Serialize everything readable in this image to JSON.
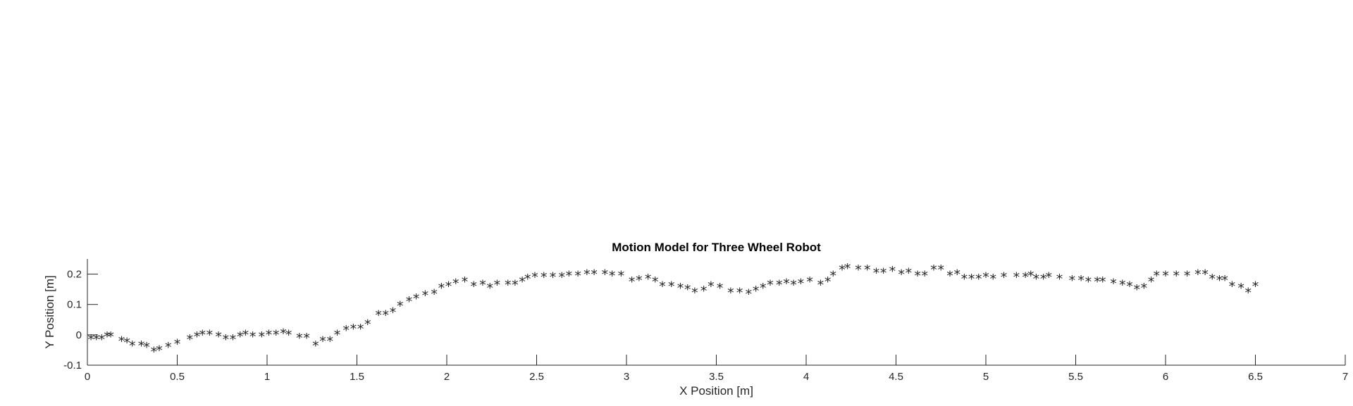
{
  "chart_data": {
    "type": "scatter",
    "title": "Motion Model for Three Wheel Robot",
    "xlabel": "X Position [m]",
    "ylabel": "Y Position [m]",
    "xlim": [
      0,
      7
    ],
    "ylim": [
      -0.1,
      0.25
    ],
    "xticks": [
      0,
      0.5,
      1,
      1.5,
      2,
      2.5,
      3,
      3.5,
      4,
      4.5,
      5,
      5.5,
      6,
      6.5,
      7
    ],
    "xtick_labels": [
      "0",
      "0.5",
      "1",
      "1.5",
      "2",
      "2.5",
      "3",
      "3.5",
      "4",
      "4.5",
      "5",
      "5.5",
      "6",
      "6.5",
      "7"
    ],
    "yticks": [
      -0.1,
      0,
      0.1,
      0.2
    ],
    "ytick_labels": [
      "-0.1",
      "0",
      "0.1",
      "0.2"
    ],
    "grid": false,
    "marker": "*",
    "marker_color": "#0000ff",
    "axis_color": "#262626",
    "series": [
      {
        "points": [
          [
            0.02,
            -0.01
          ],
          [
            0.05,
            -0.01
          ],
          [
            0.08,
            -0.01
          ],
          [
            0.11,
            0.0
          ],
          [
            0.13,
            0.0
          ],
          [
            0.19,
            -0.015
          ],
          [
            0.22,
            -0.02
          ],
          [
            0.25,
            -0.03
          ],
          [
            0.3,
            -0.03
          ],
          [
            0.33,
            -0.035
          ],
          [
            0.37,
            -0.05
          ],
          [
            0.4,
            -0.045
          ],
          [
            0.45,
            -0.035
          ],
          [
            0.5,
            -0.025
          ],
          [
            0.57,
            -0.01
          ],
          [
            0.61,
            0.0
          ],
          [
            0.64,
            0.005
          ],
          [
            0.68,
            0.005
          ],
          [
            0.73,
            0.0
          ],
          [
            0.77,
            -0.01
          ],
          [
            0.81,
            -0.01
          ],
          [
            0.85,
            0.0
          ],
          [
            0.88,
            0.005
          ],
          [
            0.92,
            0.0
          ],
          [
            0.97,
            0.0
          ],
          [
            1.01,
            0.005
          ],
          [
            1.05,
            0.005
          ],
          [
            1.09,
            0.01
          ],
          [
            1.12,
            0.005
          ],
          [
            1.18,
            -0.005
          ],
          [
            1.22,
            -0.005
          ],
          [
            1.27,
            -0.03
          ],
          [
            1.31,
            -0.015
          ],
          [
            1.35,
            -0.015
          ],
          [
            1.39,
            0.005
          ],
          [
            1.44,
            0.02
          ],
          [
            1.48,
            0.025
          ],
          [
            1.52,
            0.025
          ],
          [
            1.56,
            0.04
          ],
          [
            1.62,
            0.07
          ],
          [
            1.66,
            0.07
          ],
          [
            1.7,
            0.08
          ],
          [
            1.74,
            0.1
          ],
          [
            1.79,
            0.115
          ],
          [
            1.83,
            0.125
          ],
          [
            1.88,
            0.135
          ],
          [
            1.93,
            0.14
          ],
          [
            1.97,
            0.16
          ],
          [
            2.01,
            0.165
          ],
          [
            2.05,
            0.175
          ],
          [
            2.1,
            0.18
          ],
          [
            2.15,
            0.165
          ],
          [
            2.2,
            0.17
          ],
          [
            2.24,
            0.16
          ],
          [
            2.28,
            0.17
          ],
          [
            2.34,
            0.17
          ],
          [
            2.38,
            0.17
          ],
          [
            2.42,
            0.18
          ],
          [
            2.45,
            0.19
          ],
          [
            2.49,
            0.195
          ],
          [
            2.54,
            0.195
          ],
          [
            2.59,
            0.195
          ],
          [
            2.64,
            0.195
          ],
          [
            2.68,
            0.2
          ],
          [
            2.73,
            0.2
          ],
          [
            2.78,
            0.205
          ],
          [
            2.82,
            0.205
          ],
          [
            2.88,
            0.205
          ],
          [
            2.92,
            0.2
          ],
          [
            2.97,
            0.2
          ],
          [
            3.03,
            0.18
          ],
          [
            3.07,
            0.185
          ],
          [
            3.12,
            0.19
          ],
          [
            3.16,
            0.18
          ],
          [
            3.2,
            0.165
          ],
          [
            3.25,
            0.165
          ],
          [
            3.3,
            0.16
          ],
          [
            3.34,
            0.155
          ],
          [
            3.38,
            0.145
          ],
          [
            3.43,
            0.15
          ],
          [
            3.47,
            0.165
          ],
          [
            3.52,
            0.16
          ],
          [
            3.58,
            0.145
          ],
          [
            3.63,
            0.145
          ],
          [
            3.68,
            0.14
          ],
          [
            3.72,
            0.15
          ],
          [
            3.76,
            0.16
          ],
          [
            3.8,
            0.17
          ],
          [
            3.85,
            0.17
          ],
          [
            3.89,
            0.175
          ],
          [
            3.93,
            0.17
          ],
          [
            3.97,
            0.175
          ],
          [
            4.02,
            0.18
          ],
          [
            4.08,
            0.17
          ],
          [
            4.12,
            0.18
          ],
          [
            4.15,
            0.2
          ],
          [
            4.2,
            0.22
          ],
          [
            4.23,
            0.225
          ],
          [
            4.29,
            0.22
          ],
          [
            4.34,
            0.22
          ],
          [
            4.39,
            0.21
          ],
          [
            4.43,
            0.21
          ],
          [
            4.48,
            0.215
          ],
          [
            4.53,
            0.205
          ],
          [
            4.57,
            0.21
          ],
          [
            4.62,
            0.2
          ],
          [
            4.66,
            0.2
          ],
          [
            4.71,
            0.22
          ],
          [
            4.75,
            0.22
          ],
          [
            4.8,
            0.2
          ],
          [
            4.84,
            0.205
          ],
          [
            4.88,
            0.19
          ],
          [
            4.92,
            0.19
          ],
          [
            4.96,
            0.19
          ],
          [
            5.0,
            0.195
          ],
          [
            5.04,
            0.19
          ],
          [
            5.1,
            0.195
          ],
          [
            5.17,
            0.195
          ],
          [
            5.22,
            0.195
          ],
          [
            5.25,
            0.2
          ],
          [
            5.28,
            0.19
          ],
          [
            5.32,
            0.19
          ],
          [
            5.35,
            0.195
          ],
          [
            5.41,
            0.19
          ],
          [
            5.48,
            0.185
          ],
          [
            5.53,
            0.185
          ],
          [
            5.57,
            0.18
          ],
          [
            5.62,
            0.18
          ],
          [
            5.65,
            0.18
          ],
          [
            5.71,
            0.175
          ],
          [
            5.76,
            0.17
          ],
          [
            5.8,
            0.165
          ],
          [
            5.84,
            0.155
          ],
          [
            5.88,
            0.16
          ],
          [
            5.92,
            0.18
          ],
          [
            5.95,
            0.2
          ],
          [
            6.0,
            0.2
          ],
          [
            6.06,
            0.2
          ],
          [
            6.12,
            0.2
          ],
          [
            6.18,
            0.205
          ],
          [
            6.22,
            0.205
          ],
          [
            6.26,
            0.19
          ],
          [
            6.3,
            0.185
          ],
          [
            6.33,
            0.185
          ],
          [
            6.37,
            0.165
          ],
          [
            6.42,
            0.16
          ],
          [
            6.46,
            0.145
          ],
          [
            6.5,
            0.165
          ]
        ]
      }
    ]
  }
}
